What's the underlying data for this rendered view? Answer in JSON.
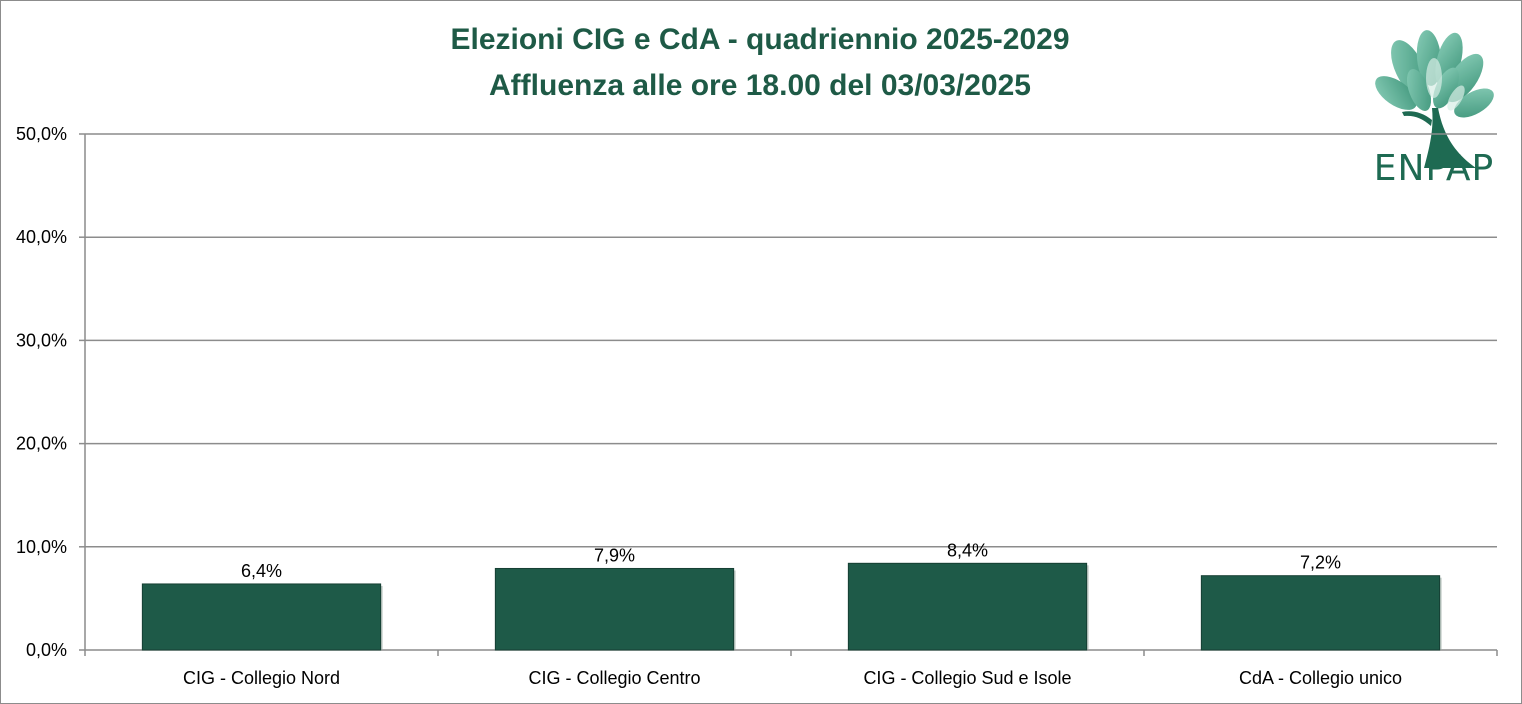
{
  "chart_data": {
    "type": "bar",
    "title_line1": "Elezioni CIG e CdA - quadriennio 2025-2029",
    "title_line2": "Affluenza alle ore 18.00 del 03/03/2025",
    "categories": [
      "CIG - Collegio Nord",
      "CIG - Collegio Centro",
      "CIG - Collegio Sud e Isole",
      "CdA - Collegio unico"
    ],
    "values": [
      6.4,
      7.9,
      8.4,
      7.2
    ],
    "data_labels": [
      "6,4%",
      "7,9%",
      "8,4%",
      "7,2%"
    ],
    "ylim": [
      0,
      50
    ],
    "yticks": [
      0,
      10,
      20,
      30,
      40,
      50
    ],
    "ytick_labels": [
      "0,0%",
      "10,0%",
      "20,0%",
      "30,0%",
      "40,0%",
      "50,0%"
    ],
    "grid": true,
    "bar_color": "#1e5a48"
  },
  "logo": {
    "text": "ENPAP",
    "color": "#1e6a52",
    "icon": "tree-icon"
  }
}
